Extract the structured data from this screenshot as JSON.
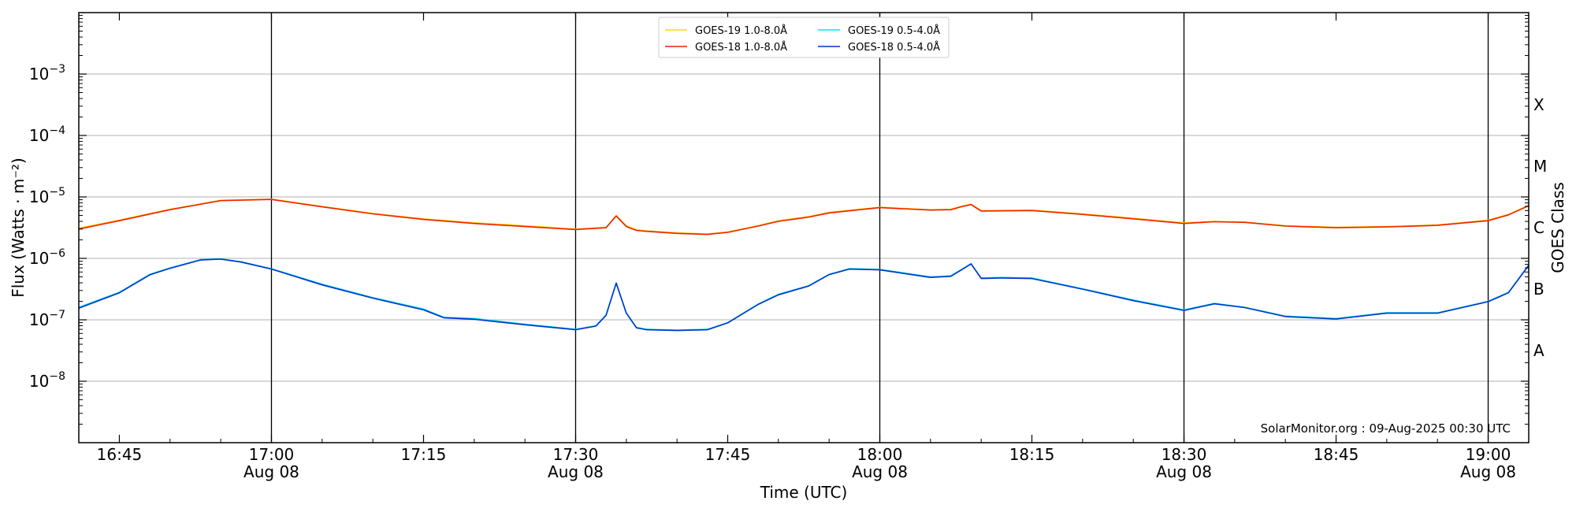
{
  "chart_data": {
    "type": "line",
    "title": "",
    "xlabel": "Time (UTC)",
    "ylabel": "Flux (Watts · m⁻²)",
    "ylabel_right": "GOES Class",
    "y_scale": "log",
    "ylim": [
      1e-09,
      0.01
    ],
    "xlim": [
      "2025-08-08 16:41",
      "2025-08-08 19:04"
    ],
    "grid": "horizontal major",
    "legend_position": "top-center",
    "x_ticks": [
      {
        "time": "16:45",
        "date": ""
      },
      {
        "time": "17:00",
        "date": "Aug 08"
      },
      {
        "time": "17:15",
        "date": ""
      },
      {
        "time": "17:30",
        "date": "Aug 08"
      },
      {
        "time": "17:45",
        "date": ""
      },
      {
        "time": "18:00",
        "date": "Aug 08"
      },
      {
        "time": "18:15",
        "date": ""
      },
      {
        "time": "18:30",
        "date": "Aug 08"
      },
      {
        "time": "18:45",
        "date": ""
      },
      {
        "time": "19:00",
        "date": "Aug 08"
      }
    ],
    "x_tick_minutes": [
      "16:45",
      "17:00",
      "17:15",
      "17:30",
      "17:45",
      "18:00",
      "18:15",
      "18:30",
      "18:45",
      "19:00"
    ],
    "day_lines": [
      "17:00",
      "17:30",
      "18:00",
      "18:30",
      "19:00"
    ],
    "y_ticks": [
      {
        "value": 1e-08,
        "base": "10",
        "exp": "−8"
      },
      {
        "value": 1e-07,
        "base": "10",
        "exp": "−7"
      },
      {
        "value": 1e-06,
        "base": "10",
        "exp": "−6"
      },
      {
        "value": 1e-05,
        "base": "10",
        "exp": "−5"
      },
      {
        "value": 0.0001,
        "base": "10",
        "exp": "−4"
      },
      {
        "value": 0.001,
        "base": "10",
        "exp": "−3"
      }
    ],
    "goes_classes": [
      {
        "label": "A",
        "value": 3.16e-08
      },
      {
        "label": "B",
        "value": 3.16e-07
      },
      {
        "label": "C",
        "value": 3.16e-06
      },
      {
        "label": "M",
        "value": 3.16e-05
      },
      {
        "label": "X",
        "value": 0.000316
      }
    ],
    "series": [
      {
        "name": "GOES-19 1.0-8.0Å",
        "color": "#ffd700",
        "x": [
          "16:41",
          "16:45",
          "16:50",
          "16:55",
          "17:00",
          "17:05",
          "17:10",
          "17:15",
          "17:20",
          "17:25",
          "17:30",
          "17:33",
          "17:34",
          "17:35",
          "17:36",
          "17:37",
          "17:40",
          "17:43",
          "17:45",
          "17:48",
          "17:50",
          "17:53",
          "17:55",
          "18:00",
          "18:05",
          "18:07",
          "18:08",
          "18:09",
          "18:10",
          "18:15",
          "18:20",
          "18:25",
          "18:30",
          "18:33",
          "18:36",
          "18:40",
          "18:45",
          "18:50",
          "18:55",
          "19:00",
          "19:02",
          "19:04"
        ],
        "values": [
          3.1e-06,
          4.2e-06,
          6.3e-06,
          8.8e-06,
          9.2e-06,
          7e-06,
          5.4e-06,
          4.4e-06,
          3.8e-06,
          3.4e-06,
          3e-06,
          3.2e-06,
          5e-06,
          3.4e-06,
          2.9e-06,
          2.8e-06,
          2.6e-06,
          2.5e-06,
          2.7e-06,
          3.4e-06,
          4.1e-06,
          4.8e-06,
          5.6e-06,
          6.8e-06,
          6.2e-06,
          6.3e-06,
          7e-06,
          7.6e-06,
          6e-06,
          6.1e-06,
          5.3e-06,
          4.5e-06,
          3.8e-06,
          4e-06,
          3.9e-06,
          3.4e-06,
          3.2e-06,
          3.3e-06,
          3.5e-06,
          4.2e-06,
          5.2e-06,
          7.3e-06
        ]
      },
      {
        "name": "GOES-19 0.5-4.0Å",
        "color": "#00e5ee",
        "x": [
          "16:41",
          "16:45",
          "16:48",
          "16:50",
          "16:53",
          "16:55",
          "16:57",
          "17:00",
          "17:05",
          "17:10",
          "17:15",
          "17:17",
          "17:20",
          "17:25",
          "17:30",
          "17:32",
          "17:33",
          "17:34",
          "17:35",
          "17:36",
          "17:37",
          "17:40",
          "17:43",
          "17:45",
          "17:48",
          "17:50",
          "17:53",
          "17:55",
          "17:57",
          "18:00",
          "18:05",
          "18:07",
          "18:08",
          "18:09",
          "18:10",
          "18:12",
          "18:15",
          "18:20",
          "18:25",
          "18:30",
          "18:33",
          "18:36",
          "18:40",
          "18:45",
          "18:50",
          "18:55",
          "19:00",
          "19:02",
          "19:04"
        ],
        "values": [
          1.6e-07,
          2.8e-07,
          5.5e-07,
          7e-07,
          9.5e-07,
          9.8e-07,
          8.8e-07,
          6.8e-07,
          3.8e-07,
          2.3e-07,
          1.5e-07,
          1.1e-07,
          1.05e-07,
          8.5e-08,
          7e-08,
          8e-08,
          1.2e-07,
          4e-07,
          1.3e-07,
          7.5e-08,
          7e-08,
          6.8e-08,
          7e-08,
          9e-08,
          1.8e-07,
          2.6e-07,
          3.6e-07,
          5.5e-07,
          6.8e-07,
          6.6e-07,
          5e-07,
          5.2e-07,
          6.5e-07,
          8.2e-07,
          4.8e-07,
          4.9e-07,
          4.8e-07,
          3.2e-07,
          2.1e-07,
          1.45e-07,
          1.85e-07,
          1.6e-07,
          1.15e-07,
          1.05e-07,
          1.3e-07,
          1.3e-07,
          2e-07,
          2.8e-07,
          7.8e-07
        ]
      },
      {
        "name": "GOES-18 1.0-8.0Å",
        "color": "#ee2200",
        "x": [
          "16:41",
          "16:45",
          "16:50",
          "16:55",
          "17:00",
          "17:05",
          "17:10",
          "17:15",
          "17:20",
          "17:25",
          "17:30",
          "17:33",
          "17:34",
          "17:35",
          "17:36",
          "17:37",
          "17:40",
          "17:43",
          "17:45",
          "17:48",
          "17:50",
          "17:53",
          "17:55",
          "18:00",
          "18:05",
          "18:07",
          "18:08",
          "18:09",
          "18:10",
          "18:15",
          "18:20",
          "18:25",
          "18:30",
          "18:33",
          "18:36",
          "18:40",
          "18:45",
          "18:50",
          "18:55",
          "19:00",
          "19:02",
          "19:04"
        ],
        "values": [
          3e-06,
          4.1e-06,
          6.2e-06,
          8.7e-06,
          9.1e-06,
          6.9e-06,
          5.3e-06,
          4.3e-06,
          3.7e-06,
          3.3e-06,
          2.95e-06,
          3.15e-06,
          4.9e-06,
          3.3e-06,
          2.85e-06,
          2.75e-06,
          2.55e-06,
          2.45e-06,
          2.65e-06,
          3.35e-06,
          4e-06,
          4.7e-06,
          5.5e-06,
          6.7e-06,
          6.1e-06,
          6.2e-06,
          6.9e-06,
          7.5e-06,
          5.9e-06,
          6e-06,
          5.2e-06,
          4.4e-06,
          3.7e-06,
          3.95e-06,
          3.85e-06,
          3.35e-06,
          3.15e-06,
          3.25e-06,
          3.45e-06,
          4.1e-06,
          5.1e-06,
          7.2e-06
        ]
      },
      {
        "name": "GOES-18 0.5-4.0Å",
        "color": "#0033cc",
        "x": [
          "16:41",
          "16:45",
          "16:48",
          "16:50",
          "16:53",
          "16:55",
          "16:57",
          "17:00",
          "17:05",
          "17:10",
          "17:15",
          "17:17",
          "17:20",
          "17:25",
          "17:30",
          "17:32",
          "17:33",
          "17:34",
          "17:35",
          "17:36",
          "17:37",
          "17:40",
          "17:43",
          "17:45",
          "17:48",
          "17:50",
          "17:53",
          "17:55",
          "17:57",
          "18:00",
          "18:05",
          "18:07",
          "18:08",
          "18:09",
          "18:10",
          "18:12",
          "18:15",
          "18:20",
          "18:25",
          "18:30",
          "18:33",
          "18:36",
          "18:40",
          "18:45",
          "18:50",
          "18:55",
          "19:00",
          "19:02",
          "19:04"
        ],
        "values": [
          1.55e-07,
          2.75e-07,
          5.4e-07,
          6.9e-07,
          9.4e-07,
          9.7e-07,
          8.7e-07,
          6.7e-07,
          3.7e-07,
          2.25e-07,
          1.45e-07,
          1.08e-07,
          1.02e-07,
          8.3e-08,
          6.9e-08,
          7.9e-08,
          1.18e-07,
          3.95e-07,
          1.28e-07,
          7.4e-08,
          6.9e-08,
          6.7e-08,
          6.9e-08,
          8.9e-08,
          1.78e-07,
          2.55e-07,
          3.55e-07,
          5.45e-07,
          6.7e-07,
          6.5e-07,
          4.9e-07,
          5.1e-07,
          6.4e-07,
          8.1e-07,
          4.7e-07,
          4.8e-07,
          4.7e-07,
          3.15e-07,
          2.05e-07,
          1.42e-07,
          1.82e-07,
          1.58e-07,
          1.13e-07,
          1.03e-07,
          1.28e-07,
          1.28e-07,
          1.97e-07,
          2.75e-07,
          7.7e-07
        ]
      }
    ],
    "credit": "SolarMonitor.org : 09-Aug-2025 00:30 UTC"
  }
}
